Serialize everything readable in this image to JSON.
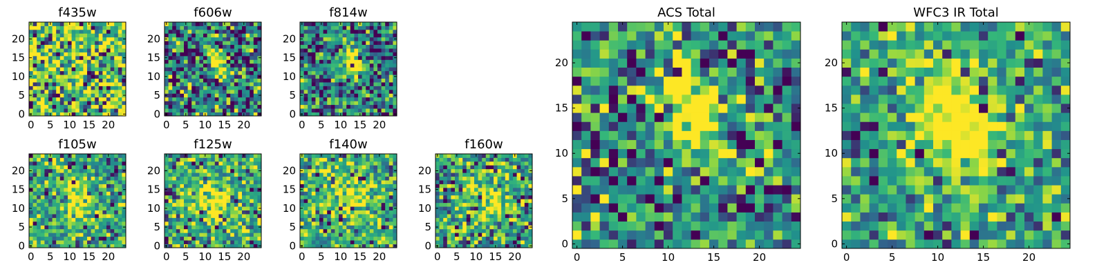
{
  "colormap": [
    "#440154",
    "#31688e",
    "#21918c",
    "#35b779",
    "#90d743",
    "#fde725"
  ],
  "chart_data": [
    {
      "type": "heatmap",
      "title": "f435w",
      "grid": false,
      "width": 25,
      "height": 25,
      "xticks": [
        0,
        5,
        10,
        15,
        20
      ],
      "yticks": [
        0,
        5,
        10,
        15,
        20
      ],
      "seed": 11,
      "bias": 0.15,
      "noise": 0.75,
      "blobs": []
    },
    {
      "type": "heatmap",
      "title": "f606w",
      "grid": false,
      "width": 25,
      "height": 25,
      "xticks": [
        0,
        5,
        10,
        15,
        20
      ],
      "yticks": [
        0,
        5,
        10,
        15,
        20
      ],
      "seed": 23,
      "bias": -0.2,
      "noise": 0.65,
      "blobs": [
        {
          "x": 13,
          "y": 14,
          "amp": 0.9,
          "sx": 1.4,
          "sy": 3.2,
          "rot": -0.45
        }
      ]
    },
    {
      "type": "heatmap",
      "title": "f814w",
      "grid": false,
      "width": 25,
      "height": 25,
      "xticks": [
        0,
        5,
        10,
        15,
        20
      ],
      "yticks": [
        0,
        5,
        10,
        15,
        20
      ],
      "seed": 37,
      "bias": -0.2,
      "noise": 0.6,
      "blobs": [
        {
          "x": 13,
          "y": 14,
          "amp": 1.0,
          "sx": 1.4,
          "sy": 3.2,
          "rot": -0.45
        }
      ]
    },
    {
      "type": "heatmap",
      "title": "f105w",
      "grid": false,
      "width": 25,
      "height": 25,
      "xticks": [
        0,
        5,
        10,
        15,
        20
      ],
      "yticks": [
        0,
        5,
        10,
        15,
        20
      ],
      "seed": 41,
      "bias": -0.05,
      "noise": 0.55,
      "blobs": [
        {
          "x": 12,
          "y": 12,
          "amp": 0.6,
          "sx": 2.5,
          "sy": 4.5,
          "rot": -0.3
        }
      ]
    },
    {
      "type": "heatmap",
      "title": "f125w",
      "grid": false,
      "width": 25,
      "height": 25,
      "xticks": [
        0,
        5,
        10,
        15,
        20
      ],
      "yticks": [
        0,
        5,
        10,
        15,
        20
      ],
      "seed": 53,
      "bias": 0.0,
      "noise": 0.55,
      "blobs": [
        {
          "x": 12,
          "y": 12,
          "amp": 0.5,
          "sx": 3.0,
          "sy": 4.0,
          "rot": -0.3
        }
      ]
    },
    {
      "type": "heatmap",
      "title": "f140w",
      "grid": false,
      "width": 25,
      "height": 25,
      "xticks": [
        0,
        5,
        10,
        15,
        20
      ],
      "yticks": [
        0,
        5,
        10,
        15,
        20
      ],
      "seed": 67,
      "bias": 0.0,
      "noise": 0.55,
      "blobs": [
        {
          "x": 13,
          "y": 13,
          "amp": 0.5,
          "sx": 3.0,
          "sy": 4.0,
          "rot": -0.3
        }
      ]
    },
    {
      "type": "heatmap",
      "title": "f160w",
      "grid": false,
      "width": 25,
      "height": 25,
      "xticks": [
        0,
        5,
        10,
        15,
        20
      ],
      "yticks": [
        0,
        5,
        10,
        15,
        20
      ],
      "seed": 79,
      "bias": -0.05,
      "noise": 0.6,
      "blobs": [
        {
          "x": 13,
          "y": 12,
          "amp": 0.5,
          "sx": 3.0,
          "sy": 4.0,
          "rot": -0.3
        }
      ]
    },
    {
      "type": "heatmap",
      "title": "ACS Total",
      "grid": false,
      "width": 25,
      "height": 25,
      "xticks": [
        0,
        5,
        10,
        15,
        20
      ],
      "yticks": [
        0,
        5,
        10,
        15,
        20
      ],
      "seed": 97,
      "bias": -0.15,
      "noise": 0.6,
      "blobs": [
        {
          "x": 13,
          "y": 14,
          "amp": 1.1,
          "sx": 1.8,
          "sy": 3.6,
          "rot": -0.45
        }
      ]
    },
    {
      "type": "heatmap",
      "title": "WFC3 IR Total",
      "grid": false,
      "width": 25,
      "height": 25,
      "xticks": [
        0,
        5,
        10,
        15,
        20
      ],
      "yticks": [
        0,
        5,
        10,
        15,
        20
      ],
      "seed": 131,
      "bias": -0.05,
      "noise": 0.5,
      "blobs": [
        {
          "x": 12,
          "y": 14,
          "amp": 0.9,
          "sx": 2.6,
          "sy": 4.2,
          "rot": -0.35
        }
      ]
    }
  ]
}
